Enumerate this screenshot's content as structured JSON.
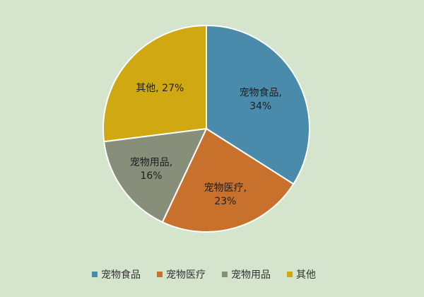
{
  "chart_data": {
    "type": "pie",
    "title": "",
    "slices": [
      {
        "category": "宠物食品",
        "value": 34,
        "label_line1": "宠物食品,",
        "label_line2": "34%",
        "color": "#4a8bab"
      },
      {
        "category": "宠物医疗",
        "value": 23,
        "label_line1": "宠物医疗,",
        "label_line2": "23%",
        "color": "#c8712d"
      },
      {
        "category": "宠物用品",
        "value": 16,
        "label_line1": "宠物用品,",
        "label_line2": "16%",
        "color": "#878f7b"
      },
      {
        "category": "其他",
        "value": 27,
        "label_line1": "其他, 27%",
        "label_line2": "",
        "color": "#d0a812"
      }
    ],
    "legend_position": "bottom"
  }
}
